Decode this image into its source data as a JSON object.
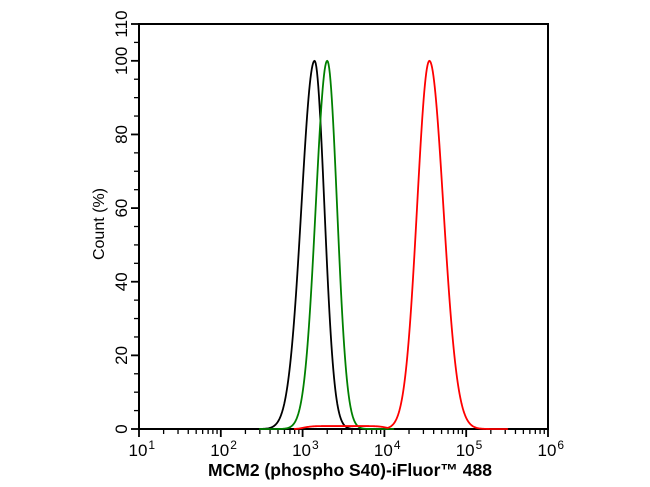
{
  "chart_data": {
    "type": "line",
    "subtype": "flow-cytometry-overlay-histogram",
    "xlabel": "MCM2 (phospho S40)-iFluor™ 488",
    "ylabel": "Count (%)",
    "x_scale": "log",
    "x_range": [
      10,
      1000000
    ],
    "x_major_tick_exponents": [
      1,
      2,
      3,
      4,
      5,
      6
    ],
    "x_tick_label_base": "10",
    "x_minor_tick_multiples": [
      2,
      3,
      4,
      5,
      6,
      7,
      8,
      9
    ],
    "y_range": [
      0,
      110
    ],
    "y_major_ticks": [
      0,
      20,
      40,
      60,
      80,
      100,
      110
    ],
    "y_minor_tick_step": 5,
    "grid": false,
    "axis_color": "#000000",
    "background_color": "#ffffff",
    "series": [
      {
        "name": "black-curve",
        "color": "#000000",
        "peak_x": 1400,
        "peak_y_percent": 100,
        "sigma_decades_left": 0.16,
        "sigma_decades_right": 0.12,
        "draw_range_x": [
          10,
          1000000
        ]
      },
      {
        "name": "green-curve",
        "color": "#008000",
        "peak_x": 2000,
        "peak_y_percent": 100,
        "sigma_decades_left": 0.14,
        "sigma_decades_right": 0.12,
        "draw_range_x": [
          300,
          13000
        ]
      },
      {
        "name": "red-curve",
        "color": "#fe0000",
        "peak_x": 35500,
        "peak_y_percent": 100,
        "sigma_decades_left": 0.15,
        "sigma_decades_right": 0.17,
        "baseline_tail": {
          "from_x": 1000,
          "to_x": 11000,
          "height_percent": 0.8
        },
        "draw_range_x": [
          800,
          320000
        ]
      }
    ]
  }
}
